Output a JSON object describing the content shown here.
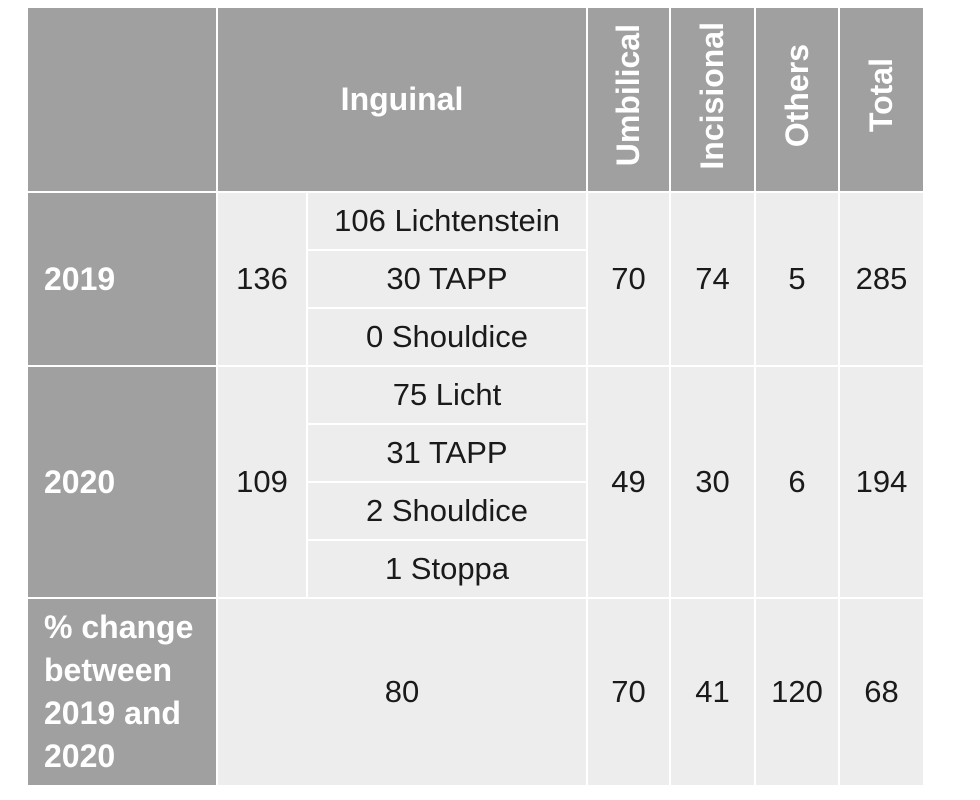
{
  "table": {
    "header": {
      "corner": "",
      "inguinal": "Inguinal",
      "umbilical": "Umbilical",
      "incisional": "Incisional",
      "others": "Others",
      "total": "Total"
    },
    "rows": [
      {
        "label": "2019",
        "inguinal_total": "136",
        "inguinal_breakdown": [
          "106 Lichtenstein",
          "30 TAPP",
          "0 Shouldice"
        ],
        "umbilical": "70",
        "incisional": "74",
        "others": "5",
        "total": "285"
      },
      {
        "label": "2020",
        "inguinal_total": "109",
        "inguinal_breakdown": [
          "75 Licht",
          "31 TAPP",
          "2 Shouldice",
          "1 Stoppa"
        ],
        "umbilical": "49",
        "incisional": "30",
        "others": "6",
        "total": "194"
      }
    ],
    "change_row": {
      "label": "% change between 2019 and 2020",
      "inguinal": "80",
      "umbilical": "70",
      "incisional": "41",
      "others": "120",
      "total": "68"
    }
  }
}
